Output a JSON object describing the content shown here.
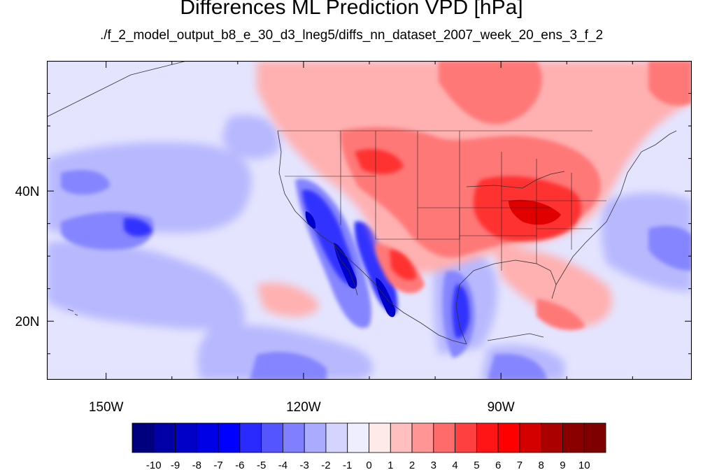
{
  "title": "Differences ML Prediction VPD [hPa]",
  "subtitle": "./f_2_model_output_b8_e_30_d3_lneg5/diffs_nn_dataset_2007_week_20_ens_3_f_2",
  "map": {
    "projection": "cylindrical-equidistant",
    "lon_range": [
      -159,
      -61
    ],
    "lat_range": [
      11,
      60
    ],
    "lon_ticks": [
      {
        "lon": -150,
        "label": "150W"
      },
      {
        "lon": -120,
        "label": "120W"
      },
      {
        "lon": -90,
        "label": "90W"
      }
    ],
    "lat_ticks": [
      {
        "lat": 40,
        "label": "40N"
      },
      {
        "lat": 20,
        "label": "20N"
      }
    ],
    "field": "VPD difference",
    "units": "hPa"
  },
  "colorbar": {
    "labels": [
      "-10",
      "-9",
      "-8",
      "-7",
      "-6",
      "-5",
      "-4",
      "-3",
      "-2",
      "-1",
      "0",
      "1",
      "2",
      "3",
      "4",
      "5",
      "6",
      "7",
      "8",
      "9",
      "10"
    ],
    "colors": [
      "#00007f",
      "#0000a6",
      "#0000c8",
      "#0000e6",
      "#0000ff",
      "#2a2aff",
      "#5555ff",
      "#7f7fff",
      "#aaaaff",
      "#d4d4ff",
      "#eeeeff",
      "#ffeaea",
      "#ffbfbf",
      "#ff9595",
      "#ff6a6a",
      "#ff4040",
      "#ff1515",
      "#ff0000",
      "#d40000",
      "#aa0000",
      "#8a0000",
      "#7f0000"
    ],
    "white": "#ffffff"
  },
  "colors": {
    "ocean_bg": "#e4e4ff",
    "land_bg": "#ffe2e2",
    "light_blue": "#b8b8ff",
    "mid_blue": "#8585ff",
    "strong_blue": "#3030ff",
    "deep_blue": "#0000c8",
    "light_red": "#ffb0b0",
    "mid_red": "#ff7878",
    "strong_red": "#ff3030",
    "deep_red": "#e00000"
  }
}
